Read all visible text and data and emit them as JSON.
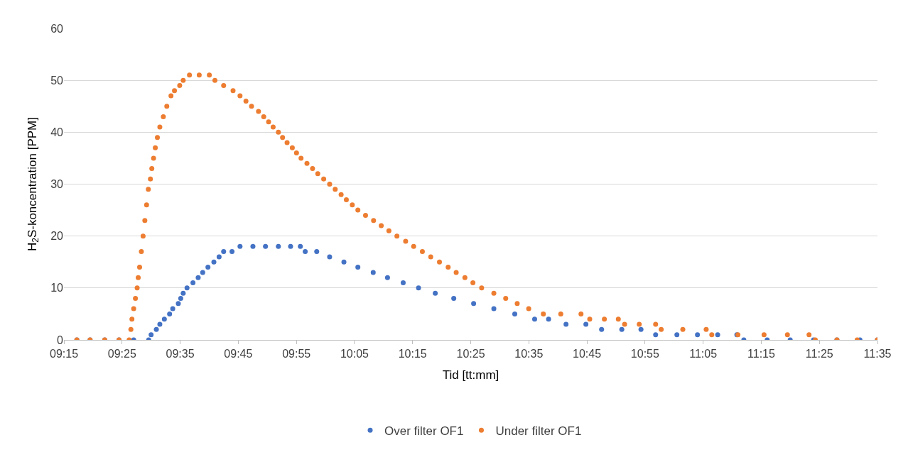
{
  "chart_data": {
    "type": "scatter",
    "xlabel": "Tid [tt:mm]",
    "ylabel": "H$_{2}$S-koncentration [PPM]",
    "xlim": [
      9.25,
      11.5833
    ],
    "xticks": [
      {
        "value": 9.25,
        "label": "09:15"
      },
      {
        "value": 9.4167,
        "label": "09:25"
      },
      {
        "value": 9.5833,
        "label": "09:35"
      },
      {
        "value": 9.75,
        "label": "09:45"
      },
      {
        "value": 9.9167,
        "label": "09:55"
      },
      {
        "value": 10.0833,
        "label": "10:05"
      },
      {
        "value": 10.25,
        "label": "10:15"
      },
      {
        "value": 10.4167,
        "label": "10:25"
      },
      {
        "value": 10.5833,
        "label": "10:35"
      },
      {
        "value": 10.75,
        "label": "10:45"
      },
      {
        "value": 10.9167,
        "label": "10:55"
      },
      {
        "value": 11.0833,
        "label": "11:05"
      },
      {
        "value": 11.25,
        "label": "11:15"
      },
      {
        "value": 11.4167,
        "label": "11:25"
      },
      {
        "value": 11.5833,
        "label": "11:35"
      }
    ],
    "ylim": [
      0,
      60
    ],
    "yticks": [
      0,
      10,
      20,
      30,
      40,
      50,
      60
    ],
    "grid": "y",
    "legend": "bottom",
    "marker": "circle",
    "series": [
      {
        "name": "Over filter OF1",
        "color": "#4472c4",
        "x": [
          9.287,
          9.325,
          9.367,
          9.408,
          9.45,
          9.493,
          9.5,
          9.515,
          9.525,
          9.538,
          9.553,
          9.562,
          9.578,
          9.585,
          9.592,
          9.603,
          9.62,
          9.635,
          9.648,
          9.663,
          9.68,
          9.695,
          9.708,
          9.732,
          9.755,
          9.792,
          9.828,
          9.865,
          9.9,
          9.928,
          9.942,
          9.975,
          10.012,
          10.053,
          10.093,
          10.137,
          10.178,
          10.223,
          10.267,
          10.315,
          10.368,
          10.425,
          10.483,
          10.543,
          10.6,
          10.64,
          10.69,
          10.747,
          10.792,
          10.85,
          10.905,
          10.947,
          11.008,
          11.067,
          11.125,
          11.18,
          11.2,
          11.267,
          11.333,
          11.4,
          11.467,
          11.533,
          11.583
        ],
        "values": [
          0,
          0,
          0,
          0,
          0,
          0,
          1,
          2,
          3,
          4,
          5,
          6,
          7,
          8,
          9,
          10,
          11,
          12,
          13,
          14,
          15,
          16,
          17,
          17,
          18,
          18,
          18,
          18,
          18,
          18,
          17,
          17,
          16,
          15,
          14,
          13,
          12,
          11,
          10,
          9,
          8,
          7,
          6,
          5,
          4,
          4,
          3,
          3,
          2,
          2,
          2,
          1,
          1,
          1,
          1,
          1,
          0,
          0,
          0,
          0,
          0,
          0,
          0
        ]
      },
      {
        "name": "Under filter OF1",
        "color": "#ed7d31",
        "x": [
          9.287,
          9.325,
          9.367,
          9.408,
          9.437,
          9.442,
          9.445,
          9.45,
          9.455,
          9.46,
          9.463,
          9.467,
          9.472,
          9.477,
          9.482,
          9.487,
          9.492,
          9.498,
          9.502,
          9.507,
          9.512,
          9.518,
          9.525,
          9.535,
          9.545,
          9.557,
          9.567,
          9.582,
          9.592,
          9.61,
          9.638,
          9.667,
          9.683,
          9.708,
          9.735,
          9.755,
          9.772,
          9.788,
          9.808,
          9.823,
          9.837,
          9.85,
          9.865,
          9.877,
          9.89,
          9.905,
          9.917,
          9.93,
          9.947,
          9.963,
          9.978,
          9.995,
          10.012,
          10.028,
          10.045,
          10.06,
          10.077,
          10.093,
          10.115,
          10.138,
          10.16,
          10.182,
          10.205,
          10.23,
          10.253,
          10.278,
          10.302,
          10.327,
          10.352,
          10.375,
          10.4,
          10.423,
          10.448,
          10.483,
          10.517,
          10.55,
          10.583,
          10.625,
          10.675,
          10.733,
          10.758,
          10.8,
          10.84,
          10.858,
          10.9,
          10.947,
          10.963,
          11.025,
          11.092,
          11.108,
          11.183,
          11.258,
          11.325,
          11.387,
          11.405,
          11.467,
          11.525,
          11.583
        ],
        "values": [
          0,
          0,
          0,
          0,
          0,
          2,
          4,
          6,
          8,
          10,
          12,
          14,
          17,
          20,
          23,
          26,
          29,
          31,
          33,
          35,
          37,
          39,
          41,
          43,
          45,
          47,
          48,
          49,
          50,
          51,
          51,
          51,
          50,
          49,
          48,
          47,
          46,
          45,
          44,
          43,
          42,
          41,
          40,
          39,
          38,
          37,
          36,
          35,
          34,
          33,
          32,
          31,
          30,
          29,
          28,
          27,
          26,
          25,
          24,
          23,
          22,
          21,
          20,
          19,
          18,
          17,
          16,
          15,
          14,
          13,
          12,
          11,
          10,
          9,
          8,
          7,
          6,
          5,
          5,
          5,
          4,
          4,
          4,
          3,
          3,
          3,
          2,
          2,
          2,
          1,
          1,
          1,
          1,
          1,
          0,
          0,
          0,
          0
        ]
      }
    ]
  }
}
